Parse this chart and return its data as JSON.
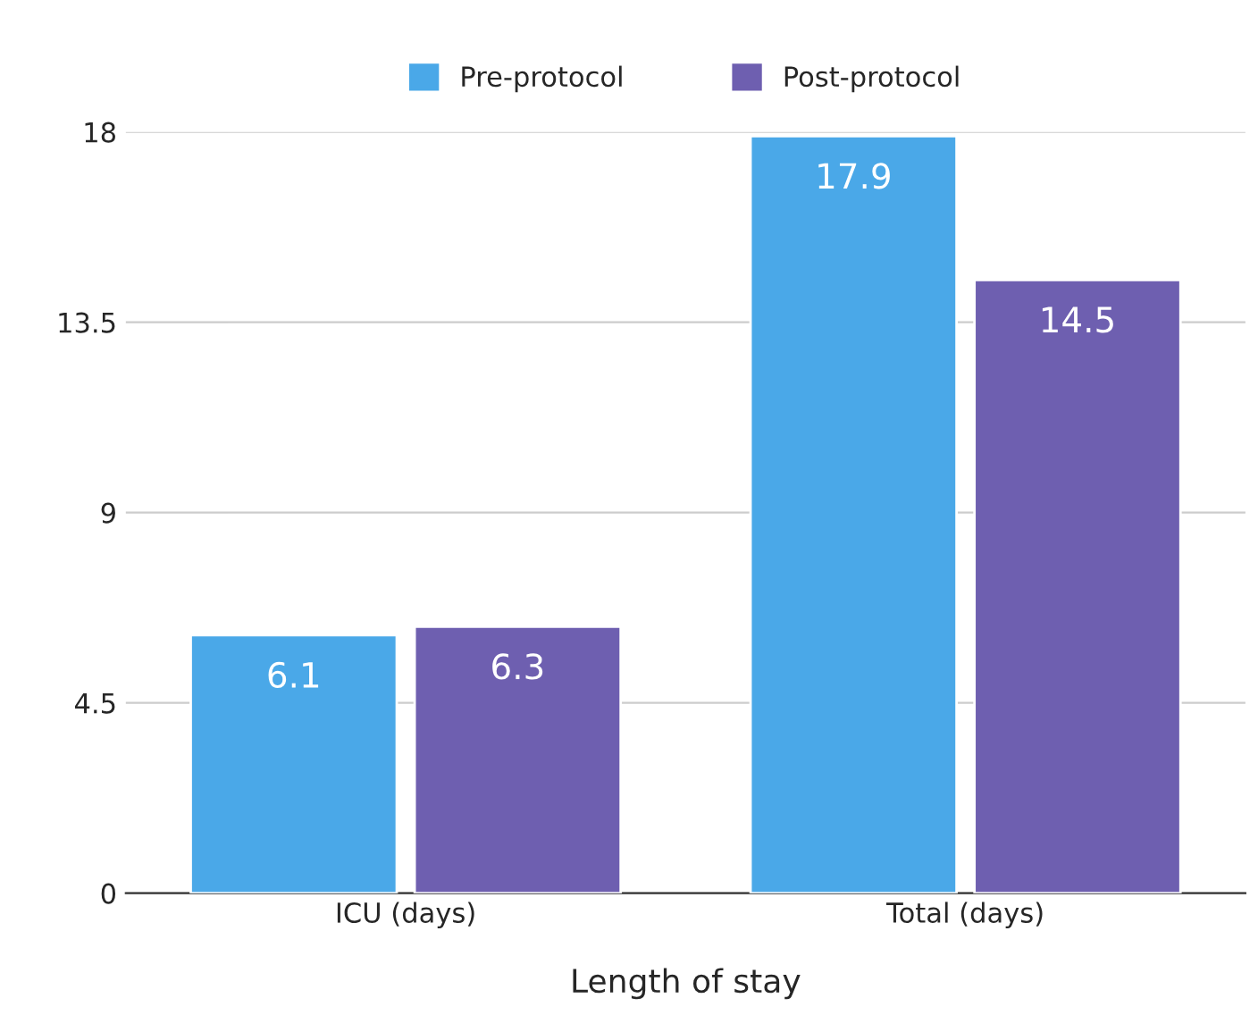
{
  "chart_data": {
    "type": "bar",
    "xlabel": "Length of stay",
    "categories": [
      "ICU (days)",
      "Total (days)"
    ],
    "series": [
      {
        "name": "Pre-protocol",
        "color": "#4aa8e8",
        "values": [
          6.1,
          17.9
        ]
      },
      {
        "name": "Post-protocol",
        "color": "#6e5fb0",
        "values": [
          6.3,
          14.5
        ]
      }
    ],
    "ylim": [
      0,
      18
    ],
    "yticks": [
      0,
      4.5,
      9,
      13.5,
      18
    ],
    "grid": "y",
    "legend": "top",
    "data_labels": true
  }
}
